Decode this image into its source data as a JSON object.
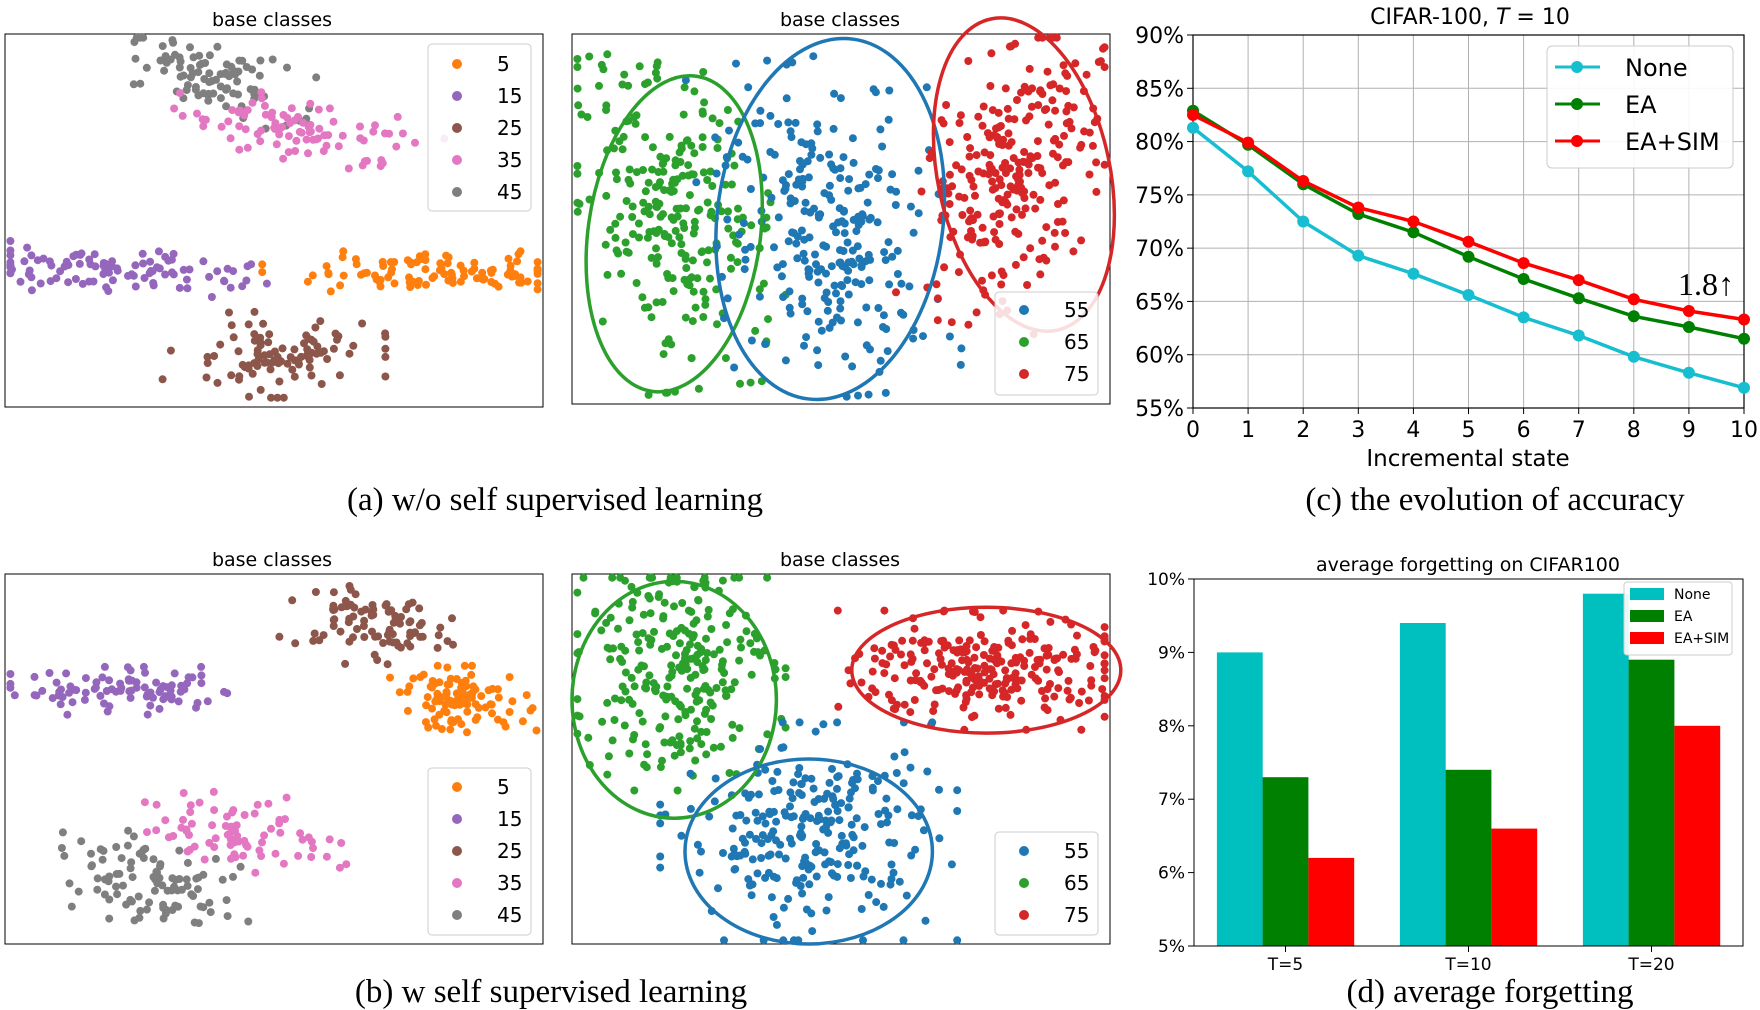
{
  "chart_data": [
    {
      "id": "a1",
      "type": "scatter",
      "title": "base classes",
      "xlim": [
        0,
        100
      ],
      "ylim": [
        0,
        100
      ],
      "legend_position": "top-right",
      "legend": [
        {
          "label": "5",
          "color": "#ff7f0e"
        },
        {
          "label": "15",
          "color": "#9467bd"
        },
        {
          "label": "25",
          "color": "#8c564b"
        },
        {
          "label": "35",
          "color": "#e377c2"
        },
        {
          "label": "45",
          "color": "#7f7f7f"
        }
      ],
      "clusters": [
        {
          "class": "45",
          "color": "#7f7f7f",
          "cx": 38,
          "cy": 88,
          "sx": 9,
          "sy": 4,
          "rot": -22,
          "n": 90
        },
        {
          "class": "35",
          "color": "#e377c2",
          "cx": 56,
          "cy": 74,
          "sx": 11,
          "sy": 4,
          "rot": -15,
          "n": 90
        },
        {
          "class": "15",
          "color": "#9467bd",
          "cx": 19,
          "cy": 37,
          "sx": 13,
          "sy": 3,
          "rot": -5,
          "n": 100
        },
        {
          "class": "5",
          "color": "#ff7f0e",
          "cx": 80,
          "cy": 36,
          "sx": 14,
          "sy": 2.5,
          "rot": 0,
          "n": 100
        },
        {
          "class": "25",
          "color": "#8c564b",
          "cx": 50,
          "cy": 14,
          "sx": 9,
          "sy": 5,
          "rot": 0,
          "n": 100
        }
      ]
    },
    {
      "id": "a2",
      "type": "scatter",
      "title": "base classes",
      "xlim": [
        0,
        100
      ],
      "ylim": [
        0,
        100
      ],
      "legend_position": "bottom-right",
      "legend": [
        {
          "label": "55",
          "color": "#1f77b4"
        },
        {
          "label": "65",
          "color": "#2ca02c"
        },
        {
          "label": "75",
          "color": "#d62728"
        }
      ],
      "clusters": [
        {
          "class": "65",
          "color": "#2ca02c",
          "cx": 19,
          "cy": 50,
          "sx": 8,
          "sy": 20,
          "rot": 10,
          "n": 260
        },
        {
          "class": "55",
          "color": "#1f77b4",
          "cx": 48,
          "cy": 48,
          "sx": 10,
          "sy": 20,
          "rot": 8,
          "n": 260
        },
        {
          "class": "75",
          "color": "#d62728",
          "cx": 82,
          "cy": 62,
          "sx": 7,
          "sy": 18,
          "rot": -12,
          "n": 260
        }
      ],
      "ellipses": [
        {
          "color": "#2ca02c",
          "cx": 19,
          "cy": 46,
          "rx": 16,
          "ry": 43,
          "rot": 8
        },
        {
          "color": "#1f77b4",
          "cx": 48,
          "cy": 50,
          "rx": 21,
          "ry": 49,
          "rot": 7
        },
        {
          "color": "#d62728",
          "cx": 84,
          "cy": 62,
          "rx": 16,
          "ry": 43,
          "rot": -12
        }
      ]
    },
    {
      "id": "b1",
      "type": "scatter",
      "title": "base classes",
      "xlim": [
        0,
        100
      ],
      "ylim": [
        0,
        100
      ],
      "legend_position": "bottom-right",
      "legend": [
        {
          "label": "5",
          "color": "#ff7f0e"
        },
        {
          "label": "15",
          "color": "#9467bd"
        },
        {
          "label": "25",
          "color": "#8c564b"
        },
        {
          "label": "35",
          "color": "#e377c2"
        },
        {
          "label": "45",
          "color": "#7f7f7f"
        }
      ],
      "clusters": [
        {
          "class": "15",
          "color": "#9467bd",
          "cx": 22,
          "cy": 68,
          "sx": 12,
          "sy": 3,
          "rot": 0,
          "n": 90
        },
        {
          "class": "25",
          "color": "#8c564b",
          "cx": 68,
          "cy": 86,
          "sx": 7,
          "sy": 5,
          "rot": -20,
          "n": 90
        },
        {
          "class": "5",
          "color": "#ff7f0e",
          "cx": 85,
          "cy": 66,
          "sx": 6,
          "sy": 4,
          "rot": 0,
          "n": 100
        },
        {
          "class": "35",
          "color": "#e377c2",
          "cx": 45,
          "cy": 30,
          "sx": 9,
          "sy": 5,
          "rot": -20,
          "n": 80
        },
        {
          "class": "45",
          "color": "#7f7f7f",
          "cx": 27,
          "cy": 16,
          "sx": 9,
          "sy": 5,
          "rot": -25,
          "n": 100
        }
      ]
    },
    {
      "id": "b2",
      "type": "scatter",
      "title": "base classes",
      "xlim": [
        0,
        100
      ],
      "ylim": [
        0,
        100
      ],
      "legend_position": "bottom-right",
      "legend": [
        {
          "label": "55",
          "color": "#1f77b4"
        },
        {
          "label": "65",
          "color": "#2ca02c"
        },
        {
          "label": "75",
          "color": "#d62728"
        }
      ],
      "clusters": [
        {
          "class": "65",
          "color": "#2ca02c",
          "cx": 19,
          "cy": 76,
          "sx": 9,
          "sy": 15,
          "rot": 0,
          "n": 260
        },
        {
          "class": "75",
          "color": "#d62728",
          "cx": 77,
          "cy": 74,
          "sx": 12,
          "sy": 7,
          "rot": 0,
          "n": 260
        },
        {
          "class": "55",
          "color": "#1f77b4",
          "cx": 44,
          "cy": 30,
          "sx": 12,
          "sy": 13,
          "rot": 0,
          "n": 260
        }
      ],
      "ellipses": [
        {
          "color": "#2ca02c",
          "cx": 19,
          "cy": 66,
          "rx": 19,
          "ry": 32,
          "rot": 0
        },
        {
          "color": "#d62728",
          "cx": 77,
          "cy": 74,
          "rx": 25,
          "ry": 17,
          "rot": 0
        },
        {
          "color": "#1f77b4",
          "cx": 44,
          "cy": 25,
          "rx": 23,
          "ry": 25,
          "rot": 0
        }
      ]
    },
    {
      "id": "c",
      "type": "line",
      "title": "CIFAR-100, T = 10",
      "title_main": "CIFAR-100, ",
      "title_var": "T",
      "title_rest": " = 10",
      "xlabel": "Incremental state",
      "ylabel": "",
      "x": [
        0,
        1,
        2,
        3,
        4,
        5,
        6,
        7,
        8,
        9,
        10
      ],
      "xlim": [
        0,
        10
      ],
      "ylim": [
        55,
        90
      ],
      "yticks": [
        55,
        60,
        65,
        70,
        75,
        80,
        85,
        90
      ],
      "ytick_labels": [
        "55%",
        "60%",
        "65%",
        "70%",
        "75%",
        "80%",
        "85%",
        "90%"
      ],
      "grid": true,
      "legend_position": "top-right",
      "series": [
        {
          "name": "None",
          "color": "#17becf",
          "values": [
            81.3,
            77.2,
            72.5,
            69.3,
            67.6,
            65.6,
            63.5,
            61.8,
            59.8,
            58.3,
            56.9
          ]
        },
        {
          "name": "EA",
          "color": "#008000",
          "values": [
            82.9,
            79.7,
            76.0,
            73.2,
            71.5,
            69.2,
            67.1,
            65.3,
            63.6,
            62.6,
            61.5
          ]
        },
        {
          "name": "EA+SIM",
          "color": "#ff0000",
          "values": [
            82.5,
            79.9,
            76.3,
            73.8,
            72.5,
            70.6,
            68.6,
            67.0,
            65.2,
            64.1,
            63.3
          ]
        }
      ],
      "annotation": "1.8↑"
    },
    {
      "id": "d",
      "type": "bar",
      "title": "average forgetting on CIFAR100",
      "categories": [
        "T=5",
        "T=10",
        "T=20"
      ],
      "ylim": [
        5,
        10
      ],
      "yticks": [
        5,
        6,
        7,
        8,
        9,
        10
      ],
      "ytick_labels": [
        "5%",
        "6%",
        "7%",
        "8%",
        "9%",
        "10%"
      ],
      "legend_position": "top-right",
      "series": [
        {
          "name": "None",
          "color": "#00bfbf",
          "values": [
            9.0,
            9.4,
            9.8
          ]
        },
        {
          "name": "EA",
          "color": "#008000",
          "values": [
            7.3,
            7.4,
            8.9
          ]
        },
        {
          "name": "EA+SIM",
          "color": "#ff0000",
          "values": [
            6.2,
            6.6,
            8.0
          ]
        }
      ]
    }
  ],
  "captions": {
    "a": "(a) w/o self supervised learning",
    "b": "(b) w self supervised learning",
    "c": "(c) the evolution of accuracy",
    "d": "(d) average forgetting"
  }
}
